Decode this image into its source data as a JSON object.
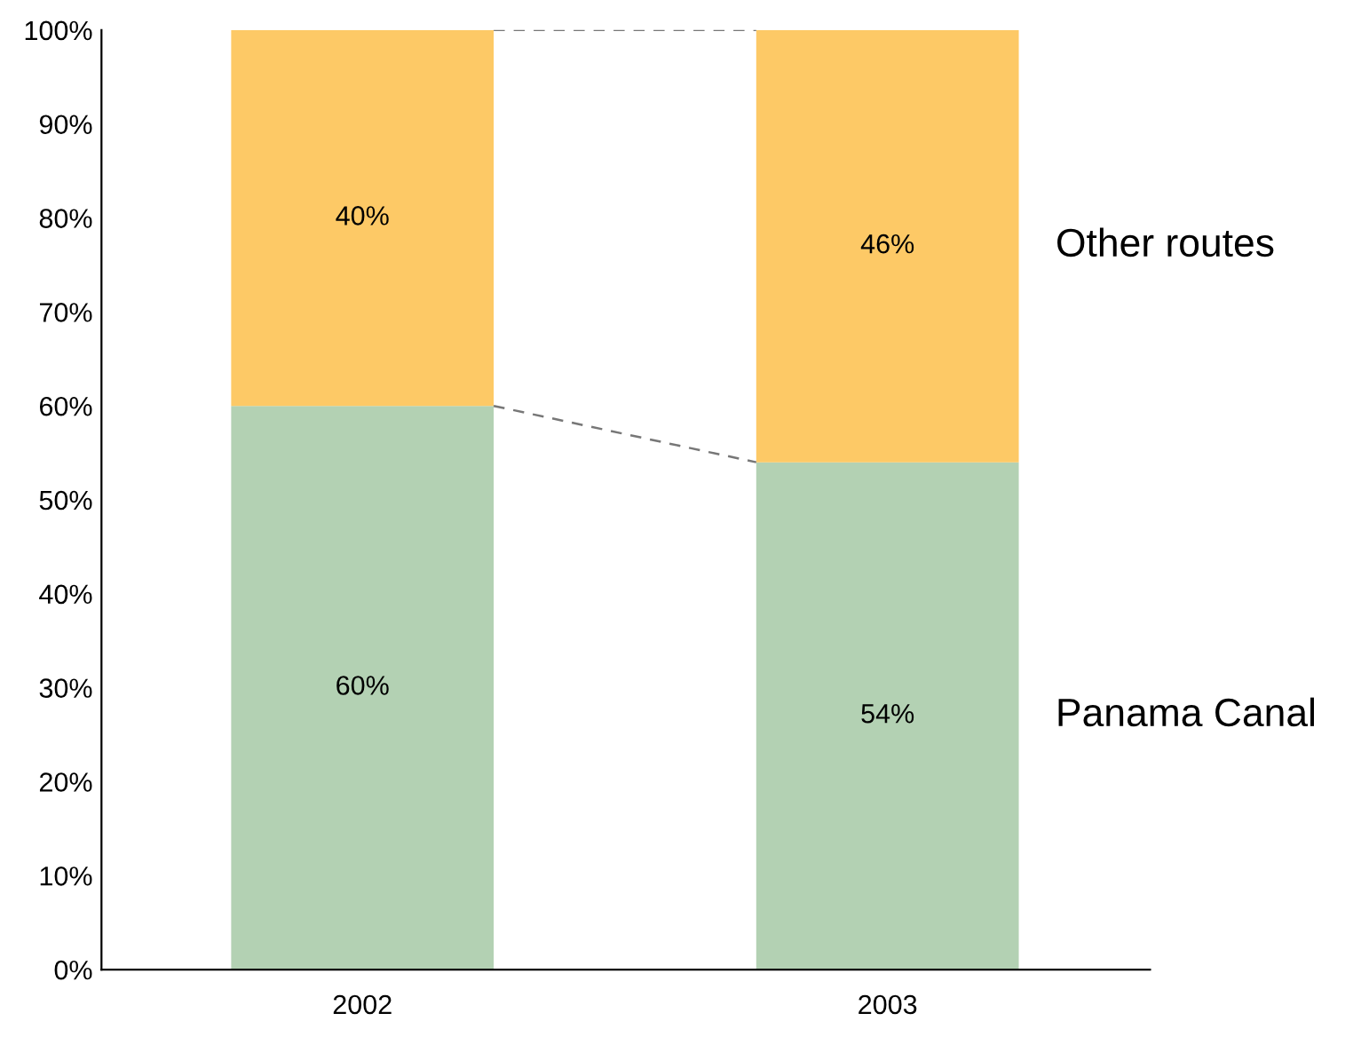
{
  "chart_data": {
    "type": "bar",
    "stacked": true,
    "categories": [
      "2002",
      "2003"
    ],
    "series": [
      {
        "name": "Panama Canal",
        "color": "#b3d1b3",
        "values": [
          60,
          54
        ],
        "value_labels": [
          "60%",
          "54%"
        ]
      },
      {
        "name": "Other routes",
        "color": "#fdc966",
        "values": [
          40,
          46
        ],
        "value_labels": [
          "40%",
          "46%"
        ]
      }
    ],
    "ylim": [
      0,
      100
    ],
    "yticks": [
      {
        "value": 0,
        "label": "0%"
      },
      {
        "value": 10,
        "label": "10%"
      },
      {
        "value": 20,
        "label": "20%"
      },
      {
        "value": 30,
        "label": "30%"
      },
      {
        "value": 40,
        "label": "40%"
      },
      {
        "value": 50,
        "label": "50%"
      },
      {
        "value": 60,
        "label": "60%"
      },
      {
        "value": 70,
        "label": "70%"
      },
      {
        "value": 80,
        "label": "80%"
      },
      {
        "value": 90,
        "label": "90%"
      },
      {
        "value": 100,
        "label": "100%"
      }
    ],
    "grid": false,
    "legend": false
  }
}
